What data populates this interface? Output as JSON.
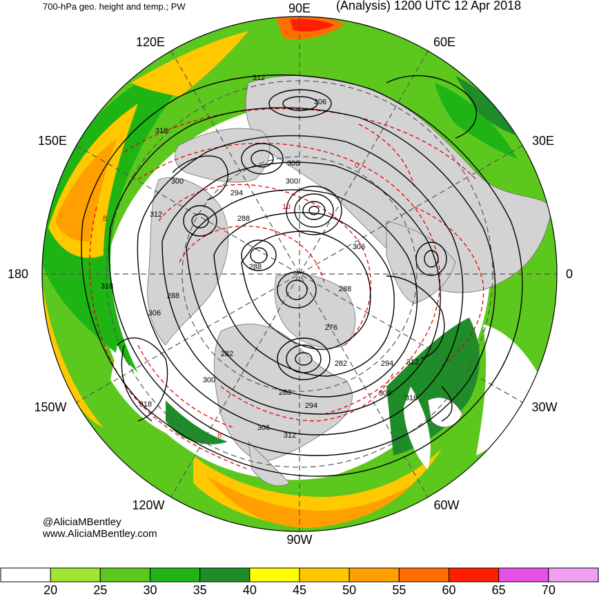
{
  "header": {
    "left_title": "700-hPa geo. height and temp.; PW",
    "right_title": "(Analysis) 1200 UTC 12 Apr 2018"
  },
  "longitude_labels": {
    "deg90e": "90E",
    "deg60e": "60E",
    "deg120e": "120E",
    "deg150e": "150E",
    "deg30e": "30E",
    "deg180": "180",
    "deg0": "0",
    "deg150w": "150W",
    "deg30w": "30W",
    "deg120w": "120W",
    "deg60w": "60W",
    "deg90w": "90W"
  },
  "height_contour_labels": [
    "312",
    "306",
    "318",
    "306",
    "300",
    "300",
    "294",
    "312",
    "288",
    "288",
    "306",
    "318",
    "288",
    "306",
    "288",
    "276",
    "282",
    "282",
    "294",
    "312",
    "300",
    "300",
    "318",
    "318",
    "288",
    "294",
    "306",
    "312"
  ],
  "temperature_contour_labels": [
    "8",
    "8",
    "0",
    "16"
  ],
  "credits": {
    "handle": "@AliciaMBentley",
    "website": "www.AliciaMBentley.com"
  },
  "colorbar": {
    "ticks": [
      "20",
      "25",
      "30",
      "35",
      "40",
      "45",
      "50",
      "55",
      "60",
      "65",
      "70"
    ],
    "colors": [
      "#ffffff",
      "#a0e632",
      "#5cc81e",
      "#1eb414",
      "#1e8c28",
      "#ffff00",
      "#ffc800",
      "#ffa000",
      "#ff6e00",
      "#ff1e00",
      "#e650e6",
      "#f0a0f0"
    ]
  },
  "map_colors": {
    "land": "#d3d3d3",
    "ocean": "#ffffff",
    "height_contours": "#000000",
    "temp_contours": "#e60000"
  }
}
